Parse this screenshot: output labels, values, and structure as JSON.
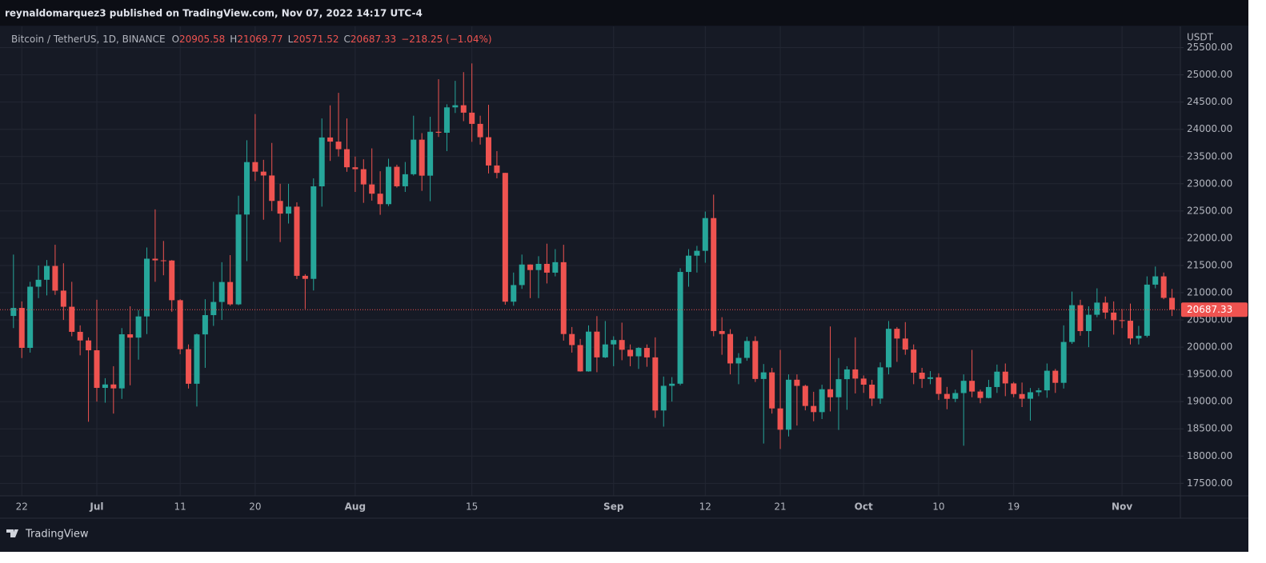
{
  "header": {
    "published": "reynaldomarquez3 published on TradingView.com, Nov 07, 2022 14:17 UTC-4"
  },
  "legend": {
    "symbol": "Bitcoin / TetherUS, 1D, BINANCE",
    "items": [
      {
        "label": "O",
        "value": 20905.58
      },
      {
        "label": "H",
        "value": 21069.77
      },
      {
        "label": "L",
        "value": 20571.52
      },
      {
        "label": "C",
        "value": 20687.33
      }
    ],
    "change": "−218.25 (−1.04%)"
  },
  "footer": {
    "brand": "TradingView"
  },
  "chart_data": {
    "type": "candlestick",
    "y_unit": "USDT",
    "up_color": "#26a69a",
    "down_color": "#ef5350",
    "grid": true,
    "current_price": 20687.33,
    "ylim": [
      17270,
      25890
    ],
    "yticks": [
      {
        "value": 17500,
        "label": "17500.00"
      },
      {
        "value": 18000,
        "label": "18000.00"
      },
      {
        "value": 18500,
        "label": "18500.00"
      },
      {
        "value": 19000,
        "label": "19000.00"
      },
      {
        "value": 19500,
        "label": "19500.00"
      },
      {
        "value": 20000,
        "label": "20000.00"
      },
      {
        "value": 20500,
        "label": "20500.00"
      },
      {
        "value": 21000,
        "label": "21000.00"
      },
      {
        "value": 21500,
        "label": "21500.00"
      },
      {
        "value": 22000,
        "label": "22000.00"
      },
      {
        "value": 22500,
        "label": "22500.00"
      },
      {
        "value": 23000,
        "label": "23000.00"
      },
      {
        "value": 23500,
        "label": "23500.00"
      },
      {
        "value": 24000,
        "label": "24000.00"
      },
      {
        "value": 24500,
        "label": "24500.00"
      },
      {
        "value": 25000,
        "label": "25000.00"
      },
      {
        "value": 25500,
        "label": "25500.00"
      }
    ],
    "xlim": [
      "2022-06-19",
      "2022-11-08"
    ],
    "xticks": [
      {
        "value": "2022-06-22",
        "label": "22"
      },
      {
        "value": "2022-07-01",
        "label": "Jul"
      },
      {
        "value": "2022-07-11",
        "label": "11"
      },
      {
        "value": "2022-07-20",
        "label": "20"
      },
      {
        "value": "2022-08-01",
        "label": "Aug"
      },
      {
        "value": "2022-08-15",
        "label": "15"
      },
      {
        "value": "2022-09-01",
        "label": "Sep"
      },
      {
        "value": "2022-09-12",
        "label": "12"
      },
      {
        "value": "2022-09-21",
        "label": "21"
      },
      {
        "value": "2022-10-01",
        "label": "Oct"
      },
      {
        "value": "2022-10-10",
        "label": "10"
      },
      {
        "value": "2022-10-19",
        "label": "19"
      },
      {
        "value": "2022-11-01",
        "label": "Nov"
      }
    ],
    "x": [
      "2022-06-21",
      "2022-06-22",
      "2022-06-23",
      "2022-06-24",
      "2022-06-25",
      "2022-06-26",
      "2022-06-27",
      "2022-06-28",
      "2022-06-29",
      "2022-06-30",
      "2022-07-01",
      "2022-07-02",
      "2022-07-03",
      "2022-07-04",
      "2022-07-05",
      "2022-07-06",
      "2022-07-07",
      "2022-07-08",
      "2022-07-09",
      "2022-07-10",
      "2022-07-11",
      "2022-07-12",
      "2022-07-13",
      "2022-07-14",
      "2022-07-15",
      "2022-07-16",
      "2022-07-17",
      "2022-07-18",
      "2022-07-19",
      "2022-07-20",
      "2022-07-21",
      "2022-07-22",
      "2022-07-23",
      "2022-07-24",
      "2022-07-25",
      "2022-07-26",
      "2022-07-27",
      "2022-07-28",
      "2022-07-29",
      "2022-07-30",
      "2022-07-31",
      "2022-08-01",
      "2022-08-02",
      "2022-08-03",
      "2022-08-04",
      "2022-08-05",
      "2022-08-06",
      "2022-08-07",
      "2022-08-08",
      "2022-08-09",
      "2022-08-10",
      "2022-08-11",
      "2022-08-12",
      "2022-08-13",
      "2022-08-14",
      "2022-08-15",
      "2022-08-16",
      "2022-08-17",
      "2022-08-18",
      "2022-08-19",
      "2022-08-20",
      "2022-08-21",
      "2022-08-22",
      "2022-08-23",
      "2022-08-24",
      "2022-08-25",
      "2022-08-26",
      "2022-08-27",
      "2022-08-28",
      "2022-08-29",
      "2022-08-30",
      "2022-08-31",
      "2022-09-01",
      "2022-09-02",
      "2022-09-03",
      "2022-09-04",
      "2022-09-05",
      "2022-09-06",
      "2022-09-07",
      "2022-09-08",
      "2022-09-09",
      "2022-09-10",
      "2022-09-11",
      "2022-09-12",
      "2022-09-13",
      "2022-09-14",
      "2022-09-15",
      "2022-09-16",
      "2022-09-17",
      "2022-09-18",
      "2022-09-19",
      "2022-09-20",
      "2022-09-21",
      "2022-09-22",
      "2022-09-23",
      "2022-09-24",
      "2022-09-25",
      "2022-09-26",
      "2022-09-27",
      "2022-09-28",
      "2022-09-29",
      "2022-09-30",
      "2022-10-01",
      "2022-10-02",
      "2022-10-03",
      "2022-10-04",
      "2022-10-05",
      "2022-10-06",
      "2022-10-07",
      "2022-10-08",
      "2022-10-09",
      "2022-10-10",
      "2022-10-11",
      "2022-10-12",
      "2022-10-13",
      "2022-10-14",
      "2022-10-15",
      "2022-10-16",
      "2022-10-17",
      "2022-10-18",
      "2022-10-19",
      "2022-10-20",
      "2022-10-21",
      "2022-10-22",
      "2022-10-23",
      "2022-10-24",
      "2022-10-25",
      "2022-10-26",
      "2022-10-27",
      "2022-10-28",
      "2022-10-29",
      "2022-10-30",
      "2022-10-31",
      "2022-11-01",
      "2022-11-02",
      "2022-11-03",
      "2022-11-04",
      "2022-11-05",
      "2022-11-06",
      "2022-11-07"
    ],
    "open": [
      20573,
      20720,
      19987,
      21110,
      21237,
      21491,
      21038,
      20742,
      20281,
      20123,
      19943,
      19252,
      19315,
      19243,
      20236,
      20175,
      20564,
      21624,
      21594,
      21591,
      20862,
      19963,
      19328,
      20234,
      20588,
      20830,
      21196,
      20786,
      22435,
      23398,
      23223,
      23152,
      22685,
      22452,
      22580,
      21310,
      21254,
      22953,
      23850,
      23774,
      23635,
      23303,
      23268,
      22988,
      22818,
      22626,
      23312,
      22954,
      23175,
      23810,
      23149,
      23955,
      23937,
      24403,
      24442,
      24306,
      24100,
      23855,
      23336,
      23200,
      20835,
      21140,
      21517,
      21416,
      21529,
      21368,
      21560,
      20241,
      20038,
      19555,
      20285,
      19812,
      20050,
      20131,
      19952,
      19832,
      19986,
      19812,
      18837,
      19290,
      19329,
      21381,
      21680,
      21769,
      22370,
      20296,
      20241,
      19701,
      19803,
      20113,
      19416,
      19537,
      18875,
      18484,
      19402,
      19289,
      18920,
      18807,
      19227,
      19080,
      19412,
      19591,
      19423,
      19311,
      19056,
      19629,
      20337,
      20158,
      19955,
      19531,
      19417,
      19446,
      19141,
      19051,
      19157,
      19382,
      19185,
      19067,
      19268,
      19550,
      19334,
      19139,
      19053,
      19172,
      19207,
      19567,
      19345,
      20095,
      20771,
      20295,
      20595,
      20818,
      20635,
      20495,
      20485,
      20160,
      20209,
      21148,
      21300,
      20905.58
    ],
    "high": [
      21700,
      20840,
      21200,
      21500,
      21600,
      21880,
      21540,
      21200,
      20400,
      20180,
      20870,
      19430,
      19650,
      20350,
      20750,
      20680,
      21830,
      22530,
      21950,
      21600,
      20880,
      20050,
      20250,
      20880,
      21200,
      21560,
      21690,
      22780,
      23800,
      24280,
      23440,
      23750,
      23000,
      23000,
      22660,
      21340,
      23100,
      24200,
      24440,
      24670,
      24200,
      23500,
      23450,
      23650,
      23230,
      23460,
      23350,
      23400,
      24250,
      23930,
      24230,
      24920,
      24460,
      24890,
      25050,
      25210,
      24250,
      24450,
      23600,
      23200,
      21370,
      21700,
      21520,
      21670,
      21900,
      21800,
      21880,
      20370,
      20150,
      20400,
      20570,
      20480,
      20200,
      20450,
      20050,
      20000,
      20050,
      20180,
      19460,
      19450,
      21450,
      21800,
      21860,
      22490,
      22800,
      20550,
      20330,
      19890,
      20190,
      20200,
      19690,
      19620,
      19950,
      19500,
      19500,
      19310,
      19180,
      19310,
      20380,
      19800,
      19650,
      20180,
      19480,
      19400,
      19720,
      20480,
      20370,
      20460,
      20050,
      19620,
      19560,
      19520,
      19270,
      19220,
      19500,
      19950,
      19220,
      19400,
      19680,
      19700,
      19360,
      19350,
      19250,
      19250,
      19700,
      19600,
      20400,
      21020,
      20870,
      20750,
      21080,
      20930,
      20840,
      20700,
      20800,
      20390,
      21300,
      21480,
      21370,
      21069.77
    ],
    "low": [
      20350,
      19800,
      19900,
      20900,
      20950,
      20960,
      20500,
      20200,
      19850,
      18630,
      19000,
      18980,
      18780,
      19050,
      19300,
      19770,
      20240,
      21200,
      21320,
      20650,
      19870,
      19240,
      18910,
      19620,
      20390,
      20500,
      20760,
      20770,
      21580,
      23050,
      22340,
      22500,
      21930,
      22270,
      21250,
      20700,
      21040,
      22580,
      23420,
      23500,
      23220,
      22850,
      22650,
      22690,
      22430,
      22590,
      22930,
      22850,
      23150,
      22870,
      22680,
      23860,
      23600,
      24300,
      24150,
      23770,
      23720,
      23190,
      23100,
      20780,
      20760,
      21070,
      20900,
      20900,
      21170,
      21300,
      20120,
      19900,
      19550,
      19550,
      19540,
      19800,
      19650,
      19760,
      19650,
      19600,
      19640,
      18700,
      18540,
      19000,
      19300,
      21110,
      21370,
      21550,
      20200,
      19860,
      19500,
      19320,
      19750,
      19360,
      18230,
      18780,
      18130,
      18360,
      18560,
      18840,
      18640,
      18680,
      18820,
      18480,
      18850,
      19150,
      19160,
      18920,
      18960,
      19500,
      19730,
      19860,
      19320,
      19250,
      19320,
      19030,
      18860,
      18990,
      18190,
      19080,
      18970,
      19060,
      19160,
      19100,
      19080,
      18900,
      18650,
      19100,
      19070,
      19160,
      19240,
      20060,
      20210,
      20000,
      20550,
      20520,
      20230,
      20350,
      20050,
      20050,
      20180,
      21080,
      20880,
      20571.52
    ],
    "close": [
      20720,
      19987,
      21110,
      21237,
      21491,
      21038,
      20742,
      20281,
      20123,
      19943,
      19252,
      19315,
      19243,
      20236,
      20175,
      20564,
      21624,
      21594,
      21591,
      20862,
      19963,
      19328,
      20234,
      20588,
      20830,
      21196,
      20786,
      22435,
      23398,
      23223,
      23152,
      22685,
      22452,
      22580,
      21310,
      21254,
      22953,
      23850,
      23774,
      23635,
      23303,
      23268,
      22988,
      22818,
      22626,
      23312,
      22954,
      23175,
      23810,
      23149,
      23955,
      23937,
      24403,
      24442,
      24306,
      24100,
      23855,
      23336,
      23200,
      20835,
      21140,
      21517,
      21416,
      21529,
      21368,
      21560,
      20241,
      20038,
      19555,
      20285,
      19812,
      20050,
      20131,
      19952,
      19832,
      19986,
      19812,
      18837,
      19290,
      19329,
      21381,
      21680,
      21769,
      22370,
      20296,
      20241,
      19701,
      19803,
      20113,
      19416,
      19537,
      18875,
      18484,
      19402,
      19289,
      18920,
      18807,
      19227,
      19080,
      19412,
      19591,
      19423,
      19311,
      19056,
      19629,
      20337,
      20158,
      19955,
      19531,
      19417,
      19446,
      19141,
      19051,
      19157,
      19382,
      19185,
      19067,
      19268,
      19550,
      19334,
      19139,
      19053,
      19172,
      19207,
      19567,
      19345,
      20095,
      20771,
      20295,
      20595,
      20818,
      20635,
      20495,
      20485,
      20160,
      20209,
      21148,
      21300,
      20905,
      20687.33
    ]
  }
}
